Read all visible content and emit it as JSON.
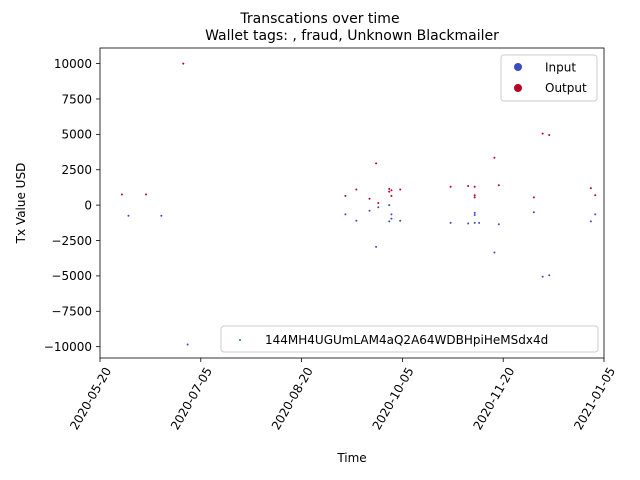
{
  "chart_data": {
    "type": "scatter",
    "title": "Transcations over time",
    "subtitle": "Wallet tags: , fraud, Unknown Blackmailer",
    "xlabel": "Time",
    "ylabel": "Tx Value USD",
    "xlim": [
      "2020-05-20",
      "2021-01-05"
    ],
    "ylim": [
      -10800,
      11100
    ],
    "x_ticks": [
      "2020-05-20",
      "2020-07-05",
      "2020-08-20",
      "2020-10-05",
      "2020-11-20",
      "2021-01-05"
    ],
    "y_ticks": [
      -10000,
      -7500,
      -5000,
      -2500,
      0,
      2500,
      5000,
      7500,
      10000
    ],
    "y_tick_labels": [
      "−10000",
      "−7500",
      "−5000",
      "−2500",
      "0",
      "2500",
      "5000",
      "7500",
      "10000"
    ],
    "grid": false,
    "legend_color": {
      "position": "top-right",
      "entries": [
        {
          "label": "Input",
          "color": "#3b4cc0"
        },
        {
          "label": "Output",
          "color": "#b40426"
        }
      ]
    },
    "legend_address": {
      "position": "bottom-right",
      "label": "144MH4UGUmLAM4aQ2A64WDBHpiHeMSdx4d",
      "color": "#1f77b4"
    },
    "series": [
      {
        "name": "Output",
        "color": "#b40426",
        "points": [
          {
            "x": "2020-05-30",
            "y": 750
          },
          {
            "x": "2020-06-10",
            "y": 750
          },
          {
            "x": "2020-06-27",
            "y": 10000
          },
          {
            "x": "2020-09-09",
            "y": 650
          },
          {
            "x": "2020-09-14",
            "y": 1100
          },
          {
            "x": "2020-09-20",
            "y": 450
          },
          {
            "x": "2020-09-23",
            "y": 2950
          },
          {
            "x": "2020-09-24",
            "y": 150
          },
          {
            "x": "2020-09-29",
            "y": 1150
          },
          {
            "x": "2020-09-29",
            "y": 950
          },
          {
            "x": "2020-09-30",
            "y": 650
          },
          {
            "x": "2020-09-30",
            "y": 1050
          },
          {
            "x": "2020-10-04",
            "y": 1100
          },
          {
            "x": "2020-10-27",
            "y": 1300
          },
          {
            "x": "2020-11-04",
            "y": 1350
          },
          {
            "x": "2020-11-07",
            "y": 1300
          },
          {
            "x": "2020-11-07",
            "y": 700
          },
          {
            "x": "2020-11-07",
            "y": 550
          },
          {
            "x": "2020-11-16",
            "y": 3350
          },
          {
            "x": "2020-11-18",
            "y": 1400
          },
          {
            "x": "2020-12-04",
            "y": 550
          },
          {
            "x": "2020-12-08",
            "y": 5050
          },
          {
            "x": "2020-12-11",
            "y": 4950
          },
          {
            "x": "2020-12-30",
            "y": 1200
          },
          {
            "x": "2021-01-01",
            "y": 700
          }
        ]
      },
      {
        "name": "Input",
        "color": "#3b4cc0",
        "points": [
          {
            "x": "2020-06-02",
            "y": -750
          },
          {
            "x": "2020-06-17",
            "y": -750
          },
          {
            "x": "2020-06-29",
            "y": -9850
          },
          {
            "x": "2020-09-09",
            "y": -650
          },
          {
            "x": "2020-09-14",
            "y": -1100
          },
          {
            "x": "2020-09-20",
            "y": -400
          },
          {
            "x": "2020-09-23",
            "y": -2950
          },
          {
            "x": "2020-09-24",
            "y": -150
          },
          {
            "x": "2020-09-29",
            "y": 0
          },
          {
            "x": "2020-09-29",
            "y": -1150
          },
          {
            "x": "2020-09-30",
            "y": -950
          },
          {
            "x": "2020-09-30",
            "y": -650
          },
          {
            "x": "2020-10-04",
            "y": -1100
          },
          {
            "x": "2020-10-27",
            "y": -1250
          },
          {
            "x": "2020-11-04",
            "y": -1300
          },
          {
            "x": "2020-11-07",
            "y": -1250
          },
          {
            "x": "2020-11-07",
            "y": -700
          },
          {
            "x": "2020-11-07",
            "y": -550
          },
          {
            "x": "2020-11-09",
            "y": -1250
          },
          {
            "x": "2020-11-16",
            "y": -3350
          },
          {
            "x": "2020-11-18",
            "y": -1350
          },
          {
            "x": "2020-12-04",
            "y": -500
          },
          {
            "x": "2020-12-08",
            "y": -5050
          },
          {
            "x": "2020-12-11",
            "y": -4950
          },
          {
            "x": "2020-12-30",
            "y": -1150
          },
          {
            "x": "2021-01-01",
            "y": -650
          }
        ]
      }
    ]
  }
}
